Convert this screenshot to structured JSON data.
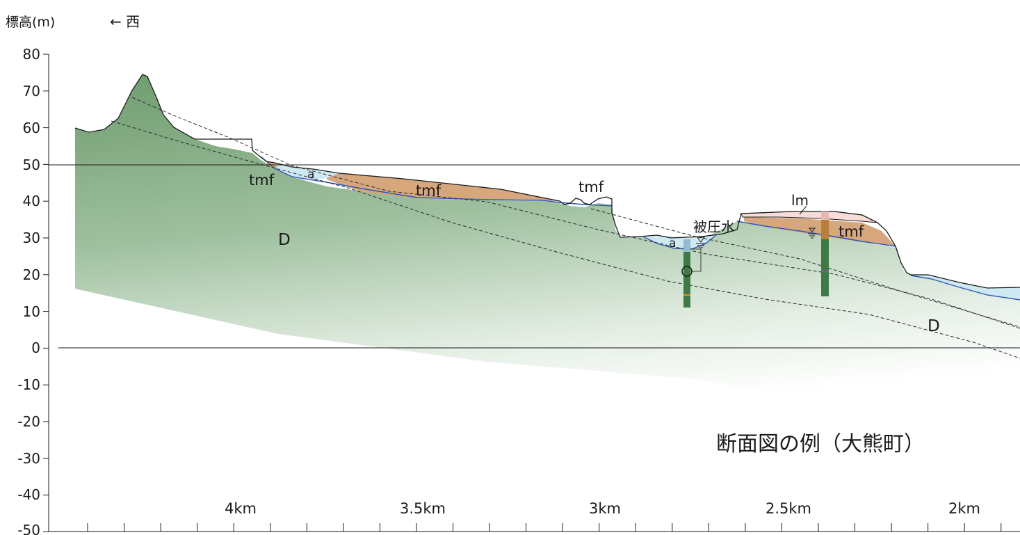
{
  "header": {
    "y_axis_title": "標高(m)",
    "direction": "← 西"
  },
  "axis": {
    "y_ticks": [
      "80",
      "70",
      "60",
      "50",
      "40",
      "30",
      "20",
      "10",
      "0",
      "-10",
      "-20",
      "-30",
      "-40",
      "-50"
    ],
    "x_labels": [
      "4km",
      "3.5km",
      "3km",
      "2.5km",
      "2km"
    ]
  },
  "labels": {
    "tmf_1": "tmf",
    "tmf_2": "tmf",
    "tmf_3": "tmf",
    "tmf_4": "tmf",
    "a_1": "a",
    "a_2": "a",
    "D_1": "D",
    "D_2": "D",
    "lm": "lm",
    "artesian": "被圧水"
  },
  "caption": "断面図の例（大熊町）",
  "colors": {
    "bedrock_green": "#6f9c6f",
    "terrace_orange": "#d6a67c",
    "alluvium_blue": "#cfe9f2",
    "boundary_blue": "#2e57b8",
    "loam_pink": "#f7dcd8",
    "borehole_green": "#3d7a45"
  }
}
